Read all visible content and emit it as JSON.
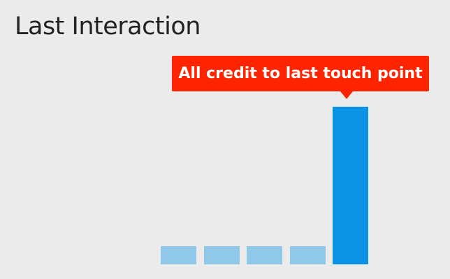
{
  "title": "Last Interaction",
  "callout": "All credit to last touch point",
  "colors": {
    "callout": "#ff2400",
    "highlight_bar": "#0a93e5",
    "muted_bar": "#90c8ea"
  },
  "bars": [
    {
      "level": 0.115,
      "highlighted": false
    },
    {
      "level": 0.115,
      "highlighted": false
    },
    {
      "level": 0.115,
      "highlighted": false
    },
    {
      "level": 0.115,
      "highlighted": false
    },
    {
      "level": 1.0,
      "highlighted": true
    }
  ]
}
